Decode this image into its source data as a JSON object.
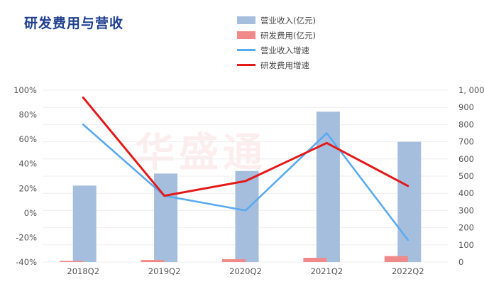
{
  "chart_data": {
    "type": "bar",
    "title": "研发费用与营收",
    "categories": [
      "2018Q2",
      "2019Q2",
      "2020Q2",
      "2021Q2",
      "2022Q2"
    ],
    "series": [
      {
        "name": "营业收入(亿元)",
        "kind": "bar",
        "axis": "right",
        "color": "#a6bede",
        "values": [
          445,
          515,
          530,
          875,
          700
        ]
      },
      {
        "name": "研发费用(亿元)",
        "kind": "bar",
        "axis": "right",
        "color": "#f08a8a",
        "values": [
          7,
          12,
          17,
          25,
          35
        ]
      },
      {
        "name": "营业收入增速",
        "kind": "line",
        "axis": "left",
        "color": "#5aaaf0",
        "values": [
          0.72,
          0.14,
          0.02,
          0.65,
          -0.22
        ]
      },
      {
        "name": "研发费用增速",
        "kind": "line",
        "axis": "left",
        "color": "#e31a1a",
        "values": [
          0.94,
          0.14,
          0.26,
          0.57,
          0.22
        ]
      }
    ],
    "y_left": {
      "range": [
        -0.4,
        1.0
      ],
      "ticks": [
        "100%",
        "80%",
        "60%",
        "40%",
        "20%",
        "0%",
        "-20%",
        "-40%"
      ],
      "tick_values": [
        1.0,
        0.8,
        0.6,
        0.4,
        0.2,
        0.0,
        -0.2,
        -0.4
      ]
    },
    "y_right": {
      "range": [
        0,
        1000
      ],
      "ticks": [
        "1, 000",
        "900",
        "800",
        "700",
        "600",
        "500",
        "400",
        "300",
        "200",
        "100",
        "0"
      ],
      "tick_values": [
        1000,
        900,
        800,
        700,
        600,
        500,
        400,
        300,
        200,
        100,
        0
      ]
    },
    "legend_position": "top-right",
    "grid": true
  },
  "watermark": "华盛通"
}
